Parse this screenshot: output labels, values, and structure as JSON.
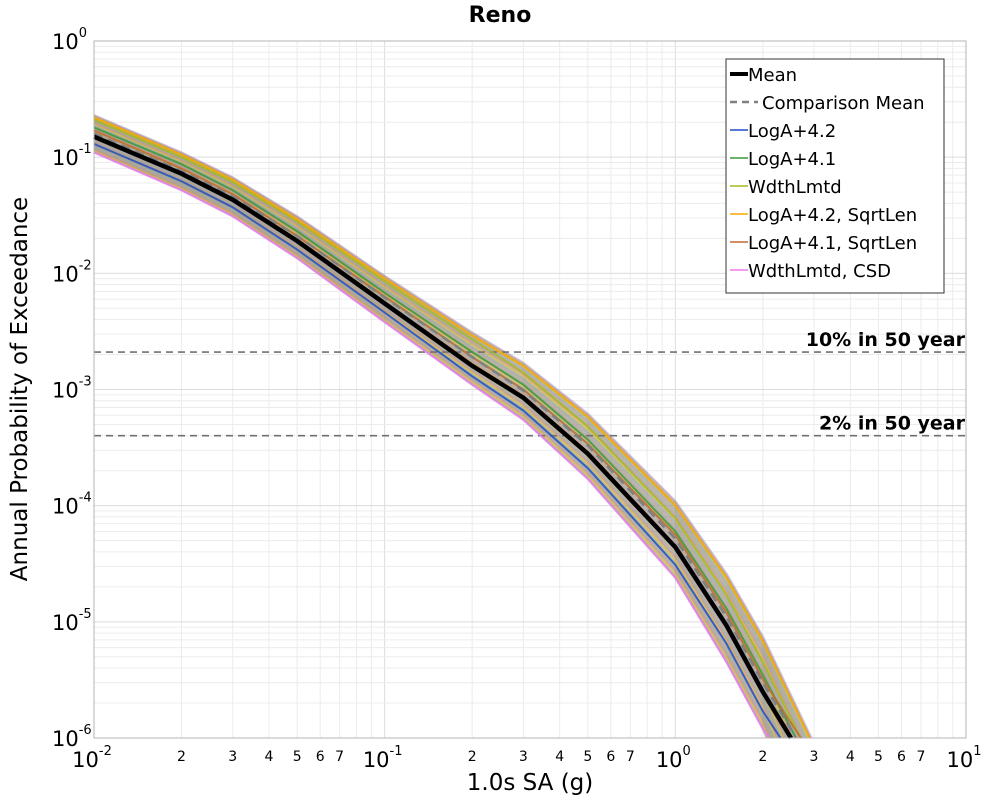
{
  "chart_data": {
    "type": "line",
    "title": "Reno",
    "xlabel": "1.0s SA (g)",
    "ylabel": "Annual Probability of Exceedance",
    "x_scale": "log",
    "y_scale": "log",
    "xlim": [
      0.01,
      10
    ],
    "ylim": [
      1e-06,
      1
    ],
    "grid": true,
    "legend_position": "top-right",
    "x_ticks_major": [
      {
        "base": "10",
        "exp": "-2",
        "value": 0.01
      },
      {
        "base": "10",
        "exp": "-1",
        "value": 0.1
      },
      {
        "base": "10",
        "exp": "0",
        "value": 1
      },
      {
        "base": "10",
        "exp": "1",
        "value": 10
      }
    ],
    "x_ticks_minor_labels": [
      "2",
      "3",
      "4",
      "5",
      "6",
      "7"
    ],
    "y_ticks_major": [
      {
        "base": "10",
        "exp": "0",
        "value": 1
      },
      {
        "base": "10",
        "exp": "-1",
        "value": 0.1
      },
      {
        "base": "10",
        "exp": "-2",
        "value": 0.01
      },
      {
        "base": "10",
        "exp": "-3",
        "value": 0.001
      },
      {
        "base": "10",
        "exp": "-4",
        "value": 0.0001
      },
      {
        "base": "10",
        "exp": "-5",
        "value": 1e-05
      },
      {
        "base": "10",
        "exp": "-6",
        "value": 1e-06
      }
    ],
    "reference_lines": [
      {
        "label": "10% in 50 year",
        "y": 0.0021
      },
      {
        "label": "2% in 50 year",
        "y": 0.0004
      }
    ],
    "legend": [
      {
        "label": "Mean",
        "color": "#000000",
        "style": "thick-solid"
      },
      {
        "label": "Comparison Mean",
        "color": "#808080",
        "style": "dashed"
      },
      {
        "label": "LogA+4.2",
        "color": "#1f4fc8",
        "style": "thin-solid"
      },
      {
        "label": "LogA+4.1",
        "color": "#3a9a3a",
        "style": "thin-solid"
      },
      {
        "label": "WdthLmtd",
        "color": "#a8b820",
        "style": "thin-solid"
      },
      {
        "label": "LogA+4.2, SqrtLen",
        "color": "#f5a800",
        "style": "thin-solid"
      },
      {
        "label": "LogA+4.1, SqrtLen",
        "color": "#c06a30",
        "style": "thin-solid"
      },
      {
        "label": "WdthLmtd, CSD",
        "color": "#f07af0",
        "style": "thin-solid"
      }
    ],
    "series": [
      {
        "name": "Mean",
        "x": [
          0.01,
          0.02,
          0.03,
          0.05,
          0.1,
          0.2,
          0.3,
          0.5,
          1.0,
          1.5,
          2.0,
          2.5
        ],
        "y": [
          0.15,
          0.072,
          0.043,
          0.019,
          0.0055,
          0.0016,
          0.00085,
          0.00028,
          4.4e-05,
          9.3e-06,
          2.5e-06,
          1e-06
        ]
      },
      {
        "name": "Comparison Mean",
        "x": [
          0.01,
          0.02,
          0.03,
          0.05,
          0.1,
          0.2,
          0.3,
          0.5,
          1.0,
          1.5,
          2.0,
          2.6
        ],
        "y": [
          0.16,
          0.076,
          0.046,
          0.021,
          0.0062,
          0.0019,
          0.00098,
          0.00033,
          5.2e-05,
          1.1e-05,
          3e-06,
          1e-06
        ]
      },
      {
        "name": "LogA+4.2",
        "x": [
          0.01,
          0.02,
          0.03,
          0.05,
          0.1,
          0.2,
          0.3,
          0.5,
          1.0,
          1.5,
          2.0,
          2.3
        ],
        "y": [
          0.13,
          0.062,
          0.037,
          0.016,
          0.0046,
          0.0013,
          0.00066,
          0.00021,
          3.1e-05,
          6.5e-06,
          1.7e-06,
          1e-06
        ]
      },
      {
        "name": "LogA+4.1",
        "x": [
          0.01,
          0.02,
          0.03,
          0.05,
          0.1,
          0.2,
          0.3,
          0.5,
          1.0,
          1.5,
          2.0,
          2.6
        ],
        "y": [
          0.18,
          0.087,
          0.052,
          0.023,
          0.0068,
          0.0021,
          0.0011,
          0.00037,
          6e-05,
          1.3e-05,
          3.5e-06,
          1e-06
        ]
      },
      {
        "name": "WdthLmtd",
        "x": [
          0.01,
          0.02,
          0.03,
          0.05,
          0.1,
          0.2,
          0.3,
          0.5,
          1.0,
          1.5,
          2.0,
          2.7
        ],
        "y": [
          0.21,
          0.1,
          0.061,
          0.028,
          0.0085,
          0.0027,
          0.0014,
          0.00048,
          7.8e-05,
          1.7e-05,
          4.5e-06,
          1e-06
        ]
      },
      {
        "name": "LogA+4.2, SqrtLen",
        "x": [
          0.01,
          0.02,
          0.03,
          0.05,
          0.1,
          0.2,
          0.3,
          0.5,
          1.0,
          1.5,
          2.0,
          2.9
        ],
        "y": [
          0.22,
          0.105,
          0.064,
          0.029,
          0.009,
          0.0029,
          0.0016,
          0.00058,
          0.0001,
          2.4e-05,
          6.8e-06,
          1e-06
        ]
      },
      {
        "name": "LogA+4.1, SqrtLen",
        "x": [
          0.01,
          0.02,
          0.03,
          0.05,
          0.1,
          0.2,
          0.3,
          0.5,
          1.0,
          1.5,
          2.0,
          2.7
        ],
        "y": [
          0.17,
          0.08,
          0.048,
          0.021,
          0.0063,
          0.0019,
          0.001,
          0.00034,
          5.6e-05,
          1.2e-05,
          3.2e-06,
          1e-06
        ]
      },
      {
        "name": "WdthLmtd, CSD",
        "x": [
          0.01,
          0.02,
          0.03,
          0.05,
          0.1,
          0.2,
          0.3,
          0.5,
          1.0,
          1.5,
          2.0,
          2.1
        ],
        "y": [
          0.11,
          0.052,
          0.031,
          0.0135,
          0.0038,
          0.0011,
          0.00055,
          0.00017,
          2.4e-05,
          4.5e-06,
          1.2e-06,
          1e-06
        ]
      }
    ]
  }
}
